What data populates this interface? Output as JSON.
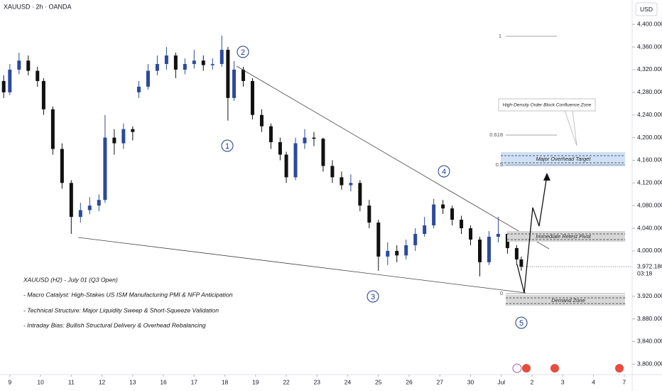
{
  "header": {
    "title": "XAUUSD · 2h · OANDA",
    "currency": "USD"
  },
  "chart_data": {
    "type": "candlestick",
    "x": [
      -0.2,
      0,
      0.3,
      0.6,
      0.9,
      1.1,
      1.4,
      1.7,
      2.0,
      2.3,
      2.6,
      2.9,
      3.1,
      3.4,
      3.7,
      4.0,
      4.2,
      4.5,
      4.8,
      5.1,
      5.4,
      5.7,
      6.0,
      6.3,
      6.6,
      6.9,
      7.1,
      7.3,
      7.6,
      7.9,
      8.2,
      8.5,
      8.8,
      9.0,
      9.3,
      9.6,
      9.9,
      10.2,
      10.5,
      10.8,
      11.1,
      11.4,
      11.7,
      12.0,
      12.3,
      12.6,
      12.9,
      13.2,
      13.5,
      13.8,
      14.1,
      14.4,
      14.7,
      15.0,
      15.3,
      15.6,
      15.9,
      16.2,
      16.5,
      16.65
    ],
    "open": [
      4300,
      4280,
      4320,
      4336,
      4318,
      4300,
      4250,
      4180,
      4120,
      4060,
      4072,
      4080,
      4090,
      4200,
      4190,
      4215,
      4280,
      4290,
      4318,
      4330,
      4345,
      4320,
      4330,
      4336,
      4328,
      4330,
      4355,
      4270,
      4320,
      4300,
      4240,
      4220,
      4192,
      4170,
      4130,
      4190,
      4200,
      4198,
      4150,
      4130,
      4116,
      4120,
      4080,
      4050,
      3990,
      4000,
      3992,
      4010,
      4030,
      4045,
      4082,
      4075,
      4055,
      4040,
      4020,
      3980,
      4025,
      4030,
      4005,
      3985
    ],
    "high": [
      4310,
      4330,
      4350,
      4345,
      4325,
      4305,
      4255,
      4190,
      4125,
      4085,
      4095,
      4100,
      4240,
      4215,
      4225,
      4220,
      4300,
      4330,
      4345,
      4360,
      4350,
      4340,
      4355,
      4345,
      4340,
      4380,
      4360,
      4335,
      4325,
      4305,
      4250,
      4225,
      4200,
      4175,
      4200,
      4215,
      4210,
      4200,
      4160,
      4140,
      4135,
      4125,
      4090,
      4055,
      4015,
      4010,
      4020,
      4040,
      4060,
      4092,
      4090,
      4080,
      4062,
      4045,
      4025,
      4035,
      4060,
      4035,
      4010,
      3990
    ],
    "low": [
      4270,
      4275,
      4312,
      4310,
      4290,
      4240,
      4170,
      4110,
      4030,
      4050,
      4065,
      4070,
      4085,
      4170,
      4180,
      4195,
      4270,
      4285,
      4310,
      4320,
      4305,
      4312,
      4322,
      4318,
      4320,
      4325,
      4230,
      4265,
      4290,
      4232,
      4210,
      4180,
      4160,
      4120,
      4125,
      4180,
      4185,
      4140,
      4120,
      4108,
      4105,
      4070,
      4040,
      3965,
      3975,
      3980,
      3985,
      4000,
      4025,
      4040,
      4065,
      4045,
      4030,
      4010,
      3955,
      3975,
      4015,
      3995,
      3975,
      3965
    ],
    "close": [
      4280,
      4320,
      4336,
      4318,
      4300,
      4250,
      4180,
      4120,
      4060,
      4072,
      4080,
      4090,
      4200,
      4190,
      4215,
      4210,
      4290,
      4318,
      4330,
      4345,
      4320,
      4330,
      4336,
      4328,
      4330,
      4355,
      4270,
      4320,
      4300,
      4240,
      4220,
      4192,
      4170,
      4130,
      4190,
      4200,
      4198,
      4150,
      4130,
      4116,
      4120,
      4080,
      4050,
      3990,
      4000,
      3992,
      4010,
      4030,
      4045,
      4082,
      4075,
      4055,
      4040,
      4020,
      3980,
      4025,
      4030,
      4005,
      3985,
      3972
    ],
    "up_color": "#2a4a9c",
    "down_color": "#111111",
    "xlim": [
      -0.32,
      20.26
    ],
    "xticks": [
      {
        "value": 0,
        "label": "9"
      },
      {
        "value": 1,
        "label": "10"
      },
      {
        "value": 2,
        "label": "11"
      },
      {
        "value": 3,
        "label": "12"
      },
      {
        "value": 4,
        "label": "13"
      },
      {
        "value": 5,
        "label": "16"
      },
      {
        "value": 6,
        "label": "17"
      },
      {
        "value": 7,
        "label": "18"
      },
      {
        "value": 8,
        "label": "19"
      },
      {
        "value": 9,
        "label": "22"
      },
      {
        "value": 10,
        "label": "23"
      },
      {
        "value": 11,
        "label": "24"
      },
      {
        "value": 12,
        "label": "25"
      },
      {
        "value": 13,
        "label": "26"
      },
      {
        "value": 14,
        "label": "27"
      },
      {
        "value": 15,
        "label": "30"
      },
      {
        "value": 16,
        "label": "Jul"
      },
      {
        "value": 17,
        "label": "2"
      },
      {
        "value": 18,
        "label": "3"
      },
      {
        "value": 19,
        "label": "4"
      },
      {
        "value": 20,
        "label": "7"
      }
    ],
    "ylim": [
      3784,
      4443
    ],
    "yticks": [
      {
        "value": 4400,
        "label": "4,400.000"
      },
      {
        "value": 4360,
        "label": "4,360.000"
      },
      {
        "value": 4320,
        "label": "4,320.000"
      },
      {
        "value": 4280,
        "label": "4,280.000"
      },
      {
        "value": 4240,
        "label": "4,240.000"
      },
      {
        "value": 4200,
        "label": "4,200.000"
      },
      {
        "value": 4160,
        "label": "4,160.000"
      },
      {
        "value": 4120,
        "label": "4,120.000"
      },
      {
        "value": 4080,
        "label": "4,080.000"
      },
      {
        "value": 4040,
        "label": "4,040.000"
      },
      {
        "value": 4000,
        "label": "4,000.000"
      },
      {
        "value": 3920,
        "label": "3,920.000"
      },
      {
        "value": 3880,
        "label": "3,880.000"
      },
      {
        "value": 3840,
        "label": "3,840.000"
      },
      {
        "value": 3800,
        "label": "3,800.000"
      }
    ],
    "last_price": {
      "value": 3972.18,
      "label": "3,972.180"
    },
    "countdown": "03:18"
  },
  "annotations": {
    "waves": [
      "1",
      "2",
      "3",
      "4",
      "5"
    ],
    "fib_levels": [
      "1",
      "0.618",
      "0.5",
      "0"
    ],
    "zones": [
      "Major Overhead Target",
      "Immediate Retest Pivot",
      "Demand Zone"
    ],
    "callout": "High-Density Order Block Confluence Zone",
    "notes": [
      "XAUUSD (H2) - July 01 (Q3 Open)",
      "- Macro Catalyst: High-Stakes US ISM Manufacturing PMI & NFP Anticipation",
      "- Technical Structure: Major Liquidity Sweep & Short-Squeeze Validation",
      "- Intraday Bias: Bullish Structural Delivery & Overhead Rebalancing"
    ]
  }
}
